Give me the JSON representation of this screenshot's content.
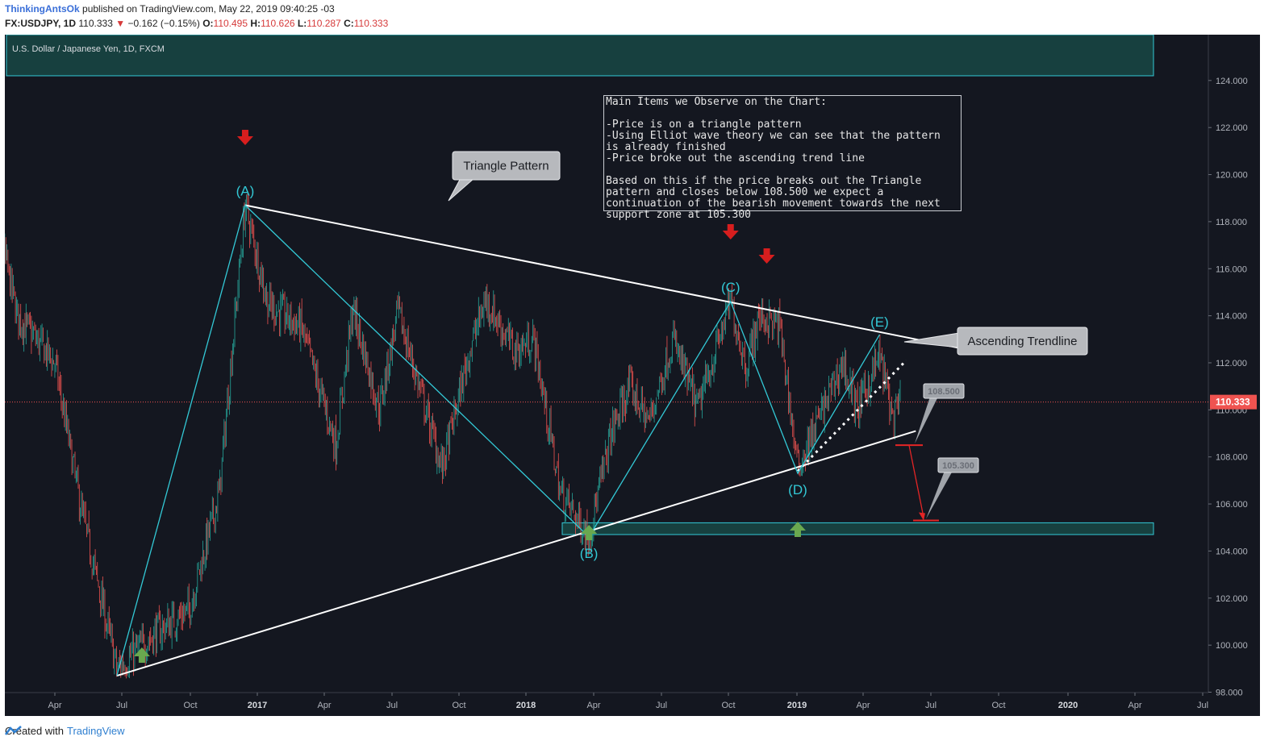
{
  "header": {
    "user": "ThinkingAntsOk",
    "published": "published on TradingView.com, May 22, 2019 09:40:25 -03",
    "symbol": "FX:USDJPY, 1D",
    "last": "110.333",
    "change_arrow": "▼",
    "change": "−0.162 (−0.15%)",
    "o_label": "O:",
    "o_val": "110.495",
    "h_label": "H:",
    "h_val": "110.626",
    "l_label": "L:",
    "l_val": "110.287",
    "c_label": "C:",
    "c_val": "110.333"
  },
  "chart": {
    "instrument_label": "U.S. Dollar / Japanese Yen, 1D, FXCM",
    "info_box": "Main Items we Observe on the Chart:\n\n-Price is on a triangle pattern\n-Using Elliot wave theory we can see that the pattern is already finished\n-Price broke out the ascending trend line\n\nBased on this if the price breaks out the Triangle pattern and closes below 108.500 we expect a continuation of the bearish movement towards the next support zone at 105.300",
    "callout_triangle": "Triangle Pattern",
    "callout_trendline": "Ascending Trendline",
    "label_108": "108.500",
    "label_105": "105.300",
    "price_tag": "110.333",
    "wave_labels": [
      "(A)",
      "(B)",
      "(C)",
      "(D)",
      "(E)"
    ],
    "colors": {
      "background": "#141720",
      "up": "#26a69a",
      "down": "#ef5350",
      "wave": "#33c9d6",
      "arrow_down": "#d71e1e",
      "arrow_up": "#6aa84f",
      "zone_fill": "#17403f"
    }
  },
  "chart_data": {
    "type": "candlestick",
    "title": "U.S. Dollar / Japanese Yen, 1D, FXCM",
    "symbol": "FX:USDJPY",
    "y_ticks": [
      "98.000",
      "100.000",
      "102.000",
      "104.000",
      "106.000",
      "108.000",
      "110.000",
      "112.000",
      "114.000",
      "116.000",
      "118.000",
      "120.000",
      "122.000",
      "124.000"
    ],
    "x_ticks": [
      "Apr",
      "Jul",
      "Oct",
      "2017",
      "Apr",
      "Jul",
      "Oct",
      "2018",
      "Apr",
      "Jul",
      "Oct",
      "2019",
      "Apr",
      "Jul",
      "Oct",
      "2020",
      "Apr",
      "Jul"
    ],
    "ylim": [
      96.5,
      124.5
    ],
    "price_path": [
      [
        "2016-01-01",
        120.0
      ],
      [
        "2016-02-10",
        114.0
      ],
      [
        "2016-04-01",
        112.0
      ],
      [
        "2016-05-05",
        106.0
      ],
      [
        "2016-06-24",
        99.0
      ],
      [
        "2016-08-15",
        100.5
      ],
      [
        "2016-09-30",
        101.5
      ],
      [
        "2016-11-10",
        106.5
      ],
      [
        "2016-12-15",
        118.7
      ],
      [
        "2017-01-15",
        114.5
      ],
      [
        "2017-03-01",
        113.5
      ],
      [
        "2017-04-17",
        108.5
      ],
      [
        "2017-05-10",
        114.3
      ],
      [
        "2017-06-15",
        110.0
      ],
      [
        "2017-07-10",
        114.2
      ],
      [
        "2017-09-08",
        107.5
      ],
      [
        "2017-10-15",
        112.5
      ],
      [
        "2017-11-06",
        114.7
      ],
      [
        "2017-12-15",
        112.5
      ],
      [
        "2018-01-10",
        113.0
      ],
      [
        "2018-02-15",
        106.5
      ],
      [
        "2018-03-26",
        104.6
      ],
      [
        "2018-04-25",
        109.0
      ],
      [
        "2018-05-20",
        111.0
      ],
      [
        "2018-06-15",
        109.5
      ],
      [
        "2018-07-18",
        113.0
      ],
      [
        "2018-08-20",
        110.0
      ],
      [
        "2018-10-04",
        114.6
      ],
      [
        "2018-10-25",
        111.8
      ],
      [
        "2018-11-12",
        114.0
      ],
      [
        "2018-12-10",
        113.5
      ],
      [
        "2019-01-03",
        107.5
      ],
      [
        "2019-01-30",
        109.5
      ],
      [
        "2019-03-05",
        112.0
      ],
      [
        "2019-03-25",
        110.0
      ],
      [
        "2019-04-24",
        112.3
      ],
      [
        "2019-05-13",
        109.5
      ],
      [
        "2019-05-22",
        110.33
      ]
    ],
    "annotations": {
      "wave_points": [
        {
          "label": "(A)",
          "date": "2016-12-15",
          "price": 118.7
        },
        {
          "label": "(B)",
          "date": "2018-03-26",
          "price": 104.6
        },
        {
          "label": "(C)",
          "date": "2018-10-04",
          "price": 114.6
        },
        {
          "label": "(D)",
          "date": "2019-01-03",
          "price": 107.3
        },
        {
          "label": "(E)",
          "date": "2019-04-24",
          "price": 113.2
        }
      ],
      "wave_start": {
        "date": "2016-06-24",
        "price": 98.7
      },
      "upper_trendline": [
        {
          "date": "2016-12-15",
          "price": 118.7
        },
        {
          "date": "2019-08-15",
          "price": 112.6
        }
      ],
      "lower_trendline": [
        {
          "date": "2016-06-24",
          "price": 98.7
        },
        {
          "date": "2019-06-12",
          "price": 109.1
        }
      ],
      "ascending_trendline_dotted": [
        {
          "date": "2019-01-03",
          "price": 107.4
        },
        {
          "date": "2019-05-30",
          "price": 112.1
        }
      ],
      "support_zone": [
        104.7,
        105.2
      ],
      "top_zone_price": 124.2,
      "last_price": 110.333,
      "breakdown_level": 108.5,
      "target": 105.3
    }
  }
}
